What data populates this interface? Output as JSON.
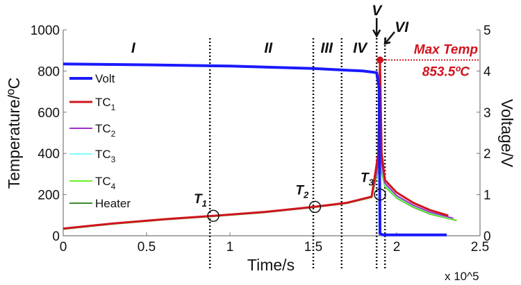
{
  "chart_data": {
    "type": "line",
    "xlabel": "Time/s",
    "x_multiplier": "x 10^5",
    "ylabel": "Temperature/ºC",
    "y2label": "Voltage/V",
    "xlim": [
      0,
      2.5
    ],
    "ylim": [
      0,
      1000
    ],
    "y2lim": [
      0,
      5
    ],
    "xticks": [
      "0",
      "0.5",
      "1",
      "1.5",
      "2",
      "2.5"
    ],
    "yticks": [
      "0",
      "200",
      "400",
      "600",
      "800",
      "1000"
    ],
    "y2ticks": [
      "0",
      "1",
      "2",
      "3",
      "4",
      "5"
    ],
    "grid": false,
    "legend_position": "left",
    "series": [
      {
        "name": "Volt",
        "axis": "right",
        "color": "#1a1aff",
        "x": [
          0,
          0.5,
          1.0,
          1.5,
          1.8,
          1.88,
          1.895,
          1.9,
          1.92,
          2.3
        ],
        "y": [
          4.17,
          4.15,
          4.12,
          4.06,
          4.0,
          3.96,
          3.6,
          0.05,
          0.02,
          0.02
        ]
      },
      {
        "name": "TC1",
        "axis": "left",
        "color": "#d0141e",
        "x": [
          0,
          0.3,
          0.6,
          0.9,
          1.2,
          1.5,
          1.7,
          1.85,
          1.89,
          1.9,
          1.91,
          1.93,
          2.0,
          2.1,
          2.2,
          2.31
        ],
        "y": [
          35,
          60,
          80,
          97,
          115,
          140,
          160,
          190,
          400,
          853.5,
          400,
          270,
          210,
          160,
          125,
          98
        ]
      },
      {
        "name": "TC2",
        "axis": "left",
        "color": "#a030c8",
        "x": [
          0,
          0.3,
          0.6,
          0.9,
          1.2,
          1.5,
          1.7,
          1.85,
          1.89,
          1.9,
          1.91,
          1.93,
          2.0,
          2.1,
          2.2,
          2.34
        ],
        "y": [
          33,
          58,
          78,
          95,
          113,
          138,
          158,
          188,
          350,
          700,
          350,
          255,
          195,
          148,
          115,
          85
        ]
      },
      {
        "name": "TC3",
        "axis": "left",
        "color": "#7fffff",
        "x": [
          0,
          0.3,
          0.6,
          0.9,
          1.2,
          1.5,
          1.7,
          1.85,
          1.89,
          1.9,
          1.91,
          1.93,
          2.0,
          2.1,
          2.2,
          2.34
        ],
        "y": [
          34,
          59,
          79,
          96,
          114,
          139,
          159,
          189,
          350,
          650,
          340,
          250,
          192,
          146,
          113,
          83
        ]
      },
      {
        "name": "TC4",
        "axis": "left",
        "color": "#66ee22",
        "x": [
          0,
          0.3,
          0.6,
          0.9,
          1.2,
          1.5,
          1.7,
          1.85,
          1.89,
          1.9,
          1.91,
          1.93,
          2.0,
          2.1,
          2.2,
          2.36
        ],
        "y": [
          32,
          57,
          77,
          94,
          112,
          137,
          157,
          186,
          330,
          600,
          320,
          240,
          185,
          140,
          108,
          75
        ]
      },
      {
        "name": "Heater",
        "axis": "left",
        "color": "#3a8a2a",
        "x": [
          0,
          0.3,
          0.6,
          0.9,
          1.2,
          1.5,
          1.7,
          1.85,
          1.89,
          1.9,
          1.91,
          1.93,
          2.0,
          2.1,
          2.2,
          2.36
        ],
        "y": [
          33,
          58,
          78,
          95,
          113,
          138,
          158,
          187,
          320,
          550,
          310,
          238,
          183,
          138,
          106,
          74
        ]
      }
    ],
    "stage_boundaries": [
      0.88,
      1.5,
      1.67,
      1.88,
      1.93
    ],
    "stage_labels": [
      {
        "text": "I",
        "x": 0.42
      },
      {
        "text": "II",
        "x": 1.23
      },
      {
        "text": "III",
        "x": 1.58
      },
      {
        "text": "IV",
        "x": 1.78
      },
      {
        "text": "V",
        "x": 1.88
      },
      {
        "text": "VI",
        "x": 1.98
      }
    ],
    "markers": [
      {
        "text": "T1",
        "x": 0.9,
        "y": 97
      },
      {
        "text": "T2",
        "x": 1.51,
        "y": 140
      },
      {
        "text": "T3",
        "x": 1.9,
        "y": 200
      }
    ],
    "annotation": {
      "title": "Max Temp",
      "value": "853.5ºC",
      "x": 1.9,
      "y": 853.5,
      "color": "#d0141e"
    }
  }
}
